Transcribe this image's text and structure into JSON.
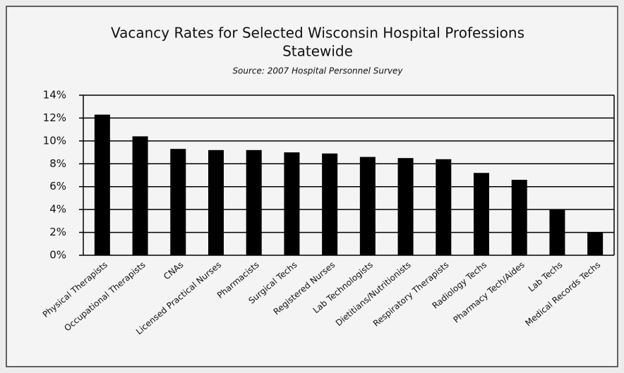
{
  "chart_data": {
    "type": "bar",
    "title": [
      "Vacancy Rates for Selected Wisconsin Hospital Professions",
      "Statewide"
    ],
    "subtitle": "Source: 2007 Hospital Personnel Survey",
    "categories": [
      "Physical Therapists",
      "Occupational Therapists",
      "CNAs",
      "Licensed Practical Nurses",
      "Pharmacists",
      "Surgical Techs",
      "Registered Nurses",
      "Lab Technologists",
      "Dietitians/Nutritionists",
      "Respiratory Therapists",
      "Radiology Techs",
      "Pharmacy Tech/Aides",
      "Lab Techs",
      "Medical Records Techs"
    ],
    "values": [
      12.3,
      10.4,
      9.3,
      9.2,
      9.2,
      9.0,
      8.9,
      8.6,
      8.5,
      8.4,
      7.2,
      6.6,
      4.0,
      2.0
    ],
    "color": "#000000",
    "ylim": [
      0,
      14
    ],
    "yticks": [
      {
        "value": 0,
        "label": "0%"
      },
      {
        "value": 2,
        "label": "2%"
      },
      {
        "value": 4,
        "label": "4%"
      },
      {
        "value": 6,
        "label": "6%"
      },
      {
        "value": 8,
        "label": "8%"
      },
      {
        "value": 10,
        "label": "10%"
      },
      {
        "value": 12,
        "label": "12%"
      },
      {
        "value": 14,
        "label": "14%"
      }
    ],
    "grid": true
  }
}
